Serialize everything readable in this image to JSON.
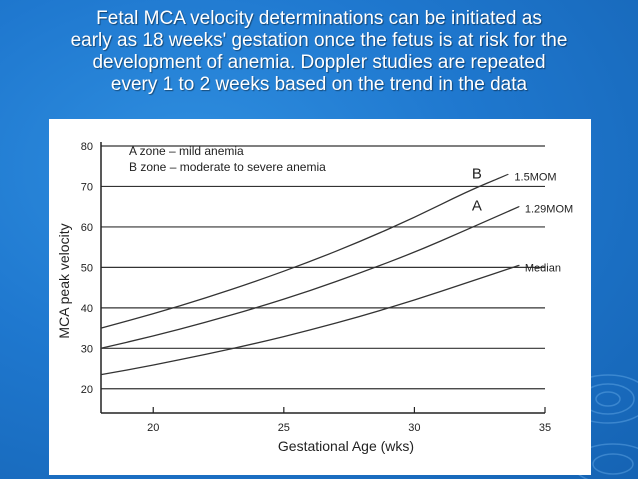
{
  "slide": {
    "title_lines": [
      "Fetal MCA velocity determinations can be initiated as",
      "early as 18 weeks' gestation once the fetus is at risk for the",
      "development of anemia. Doppler studies are repeated",
      "every 1 to 2 weeks based on the trend in the data"
    ],
    "background_color": "#1f78cf",
    "text_color": "#ffffff"
  },
  "chart_data": {
    "type": "line",
    "title": "",
    "xlabel": "Gestational Age (wks)",
    "ylabel": "MCA peak velocity",
    "xlim": [
      18,
      35
    ],
    "ylim": [
      15,
      80
    ],
    "x_ticks": [
      20,
      25,
      30,
      35
    ],
    "y_ticks": [
      20,
      30,
      40,
      50,
      60,
      70,
      80
    ],
    "grid": "horizontal",
    "legend": [
      "A zone  – mild anemia",
      "B  zone – moderate to severe anemia"
    ],
    "series": [
      {
        "name": "1.5MOM",
        "x": [
          18,
          20,
          22,
          24,
          26,
          28,
          30,
          32,
          33.6
        ],
        "y": [
          35,
          38.5,
          42.4,
          46.7,
          51.4,
          56.6,
          62.3,
          68.7,
          73
        ]
      },
      {
        "name": "1.29MOM",
        "x": [
          18,
          20,
          22,
          24,
          26,
          28,
          30,
          32,
          34
        ],
        "y": [
          30,
          33,
          36.4,
          40.1,
          44.2,
          48.8,
          53.7,
          59.3,
          65
        ]
      },
      {
        "name": "Median",
        "x": [
          18,
          20,
          22,
          24,
          26,
          28,
          30,
          32,
          34
        ],
        "y": [
          23.5,
          25.8,
          28.5,
          31.3,
          34.5,
          38,
          41.9,
          46.2,
          50.5
        ]
      }
    ],
    "zone_labels": [
      {
        "text": "B",
        "x": 32.2,
        "y": 72
      },
      {
        "text": "A",
        "x": 32.2,
        "y": 64
      }
    ],
    "colors": {
      "line": "#333333",
      "grid": "#333333",
      "axis": "#222222"
    }
  }
}
